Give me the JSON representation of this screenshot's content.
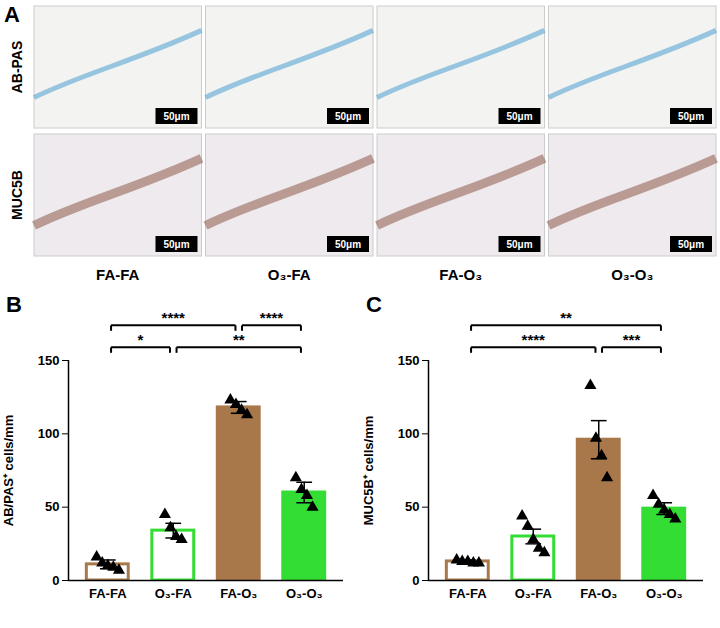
{
  "image_panel": {
    "label": "A",
    "rows": [
      "AB-PAS",
      "MUC5B"
    ],
    "columns": [
      "FA-FA",
      "O₃-FA",
      "FA-O₃",
      "O₃-O₃"
    ],
    "scale_bar": "50μm"
  },
  "chart_data": [
    {
      "panel_label": "B",
      "type": "bar",
      "y_label": "AB/PAS⁺ cells/mm",
      "categories": [
        "FA-FA",
        "O₃-FA",
        "FA-O₃",
        "O₃-O₃"
      ],
      "values": [
        11,
        34,
        118,
        60
      ],
      "errors": [
        3,
        5,
        4,
        7
      ],
      "points": [
        [
          16,
          12,
          10,
          9,
          7
        ],
        [
          45,
          36,
          30,
          28
        ],
        [
          123,
          120,
          116,
          113
        ],
        [
          70,
          62,
          58,
          50
        ]
      ],
      "colors": [
        {
          "fill": "#ffffff",
          "stroke": "#a9784a"
        },
        {
          "fill": "#ffffff",
          "stroke": "#33dd33"
        },
        {
          "fill": "#a9784a",
          "stroke": "#a9784a"
        },
        {
          "fill": "#33dd33",
          "stroke": "#33dd33"
        }
      ],
      "marker": "triangle",
      "ylim": [
        0,
        150
      ],
      "yticks": [
        0,
        50,
        100,
        150
      ],
      "significance": [
        {
          "from": "FA-O₃",
          "to": "O₃-O₃",
          "label": "****"
        },
        {
          "from": "FA-FA",
          "to": "FA-O₃",
          "label": "****"
        },
        {
          "from": "FA-FA",
          "to": "O₃-FA",
          "label": "*"
        },
        {
          "from": "O₃-FA",
          "to": "O₃-O₃",
          "label": "**"
        }
      ]
    },
    {
      "panel_label": "C",
      "type": "bar",
      "y_label": "MUC5B⁺ cells/mm",
      "categories": [
        "FA-FA",
        "O₃-FA",
        "FA-O₃",
        "O₃-O₃"
      ],
      "values": [
        13,
        30,
        96,
        49
      ],
      "errors": [
        1,
        5,
        13,
        4
      ],
      "points": [
        [
          14,
          13,
          13,
          12,
          12
        ],
        [
          44,
          37,
          28,
          22,
          19
        ],
        [
          133,
          97,
          85,
          70
        ],
        [
          58,
          52,
          48,
          45,
          42
        ]
      ],
      "colors": [
        {
          "fill": "#ffffff",
          "stroke": "#a9784a"
        },
        {
          "fill": "#ffffff",
          "stroke": "#33dd33"
        },
        {
          "fill": "#a9784a",
          "stroke": "#a9784a"
        },
        {
          "fill": "#33dd33",
          "stroke": "#33dd33"
        }
      ],
      "marker": "triangle",
      "ylim": [
        0,
        150
      ],
      "yticks": [
        0,
        50,
        100,
        150
      ],
      "significance": [
        {
          "from": "FA-FA",
          "to": "O₃-O₃",
          "label": "**"
        },
        {
          "from": "FA-O₃",
          "to": "O₃-O₃",
          "label": "***"
        },
        {
          "from": "FA-FA",
          "to": "FA-O₃",
          "label": "****"
        }
      ]
    }
  ]
}
